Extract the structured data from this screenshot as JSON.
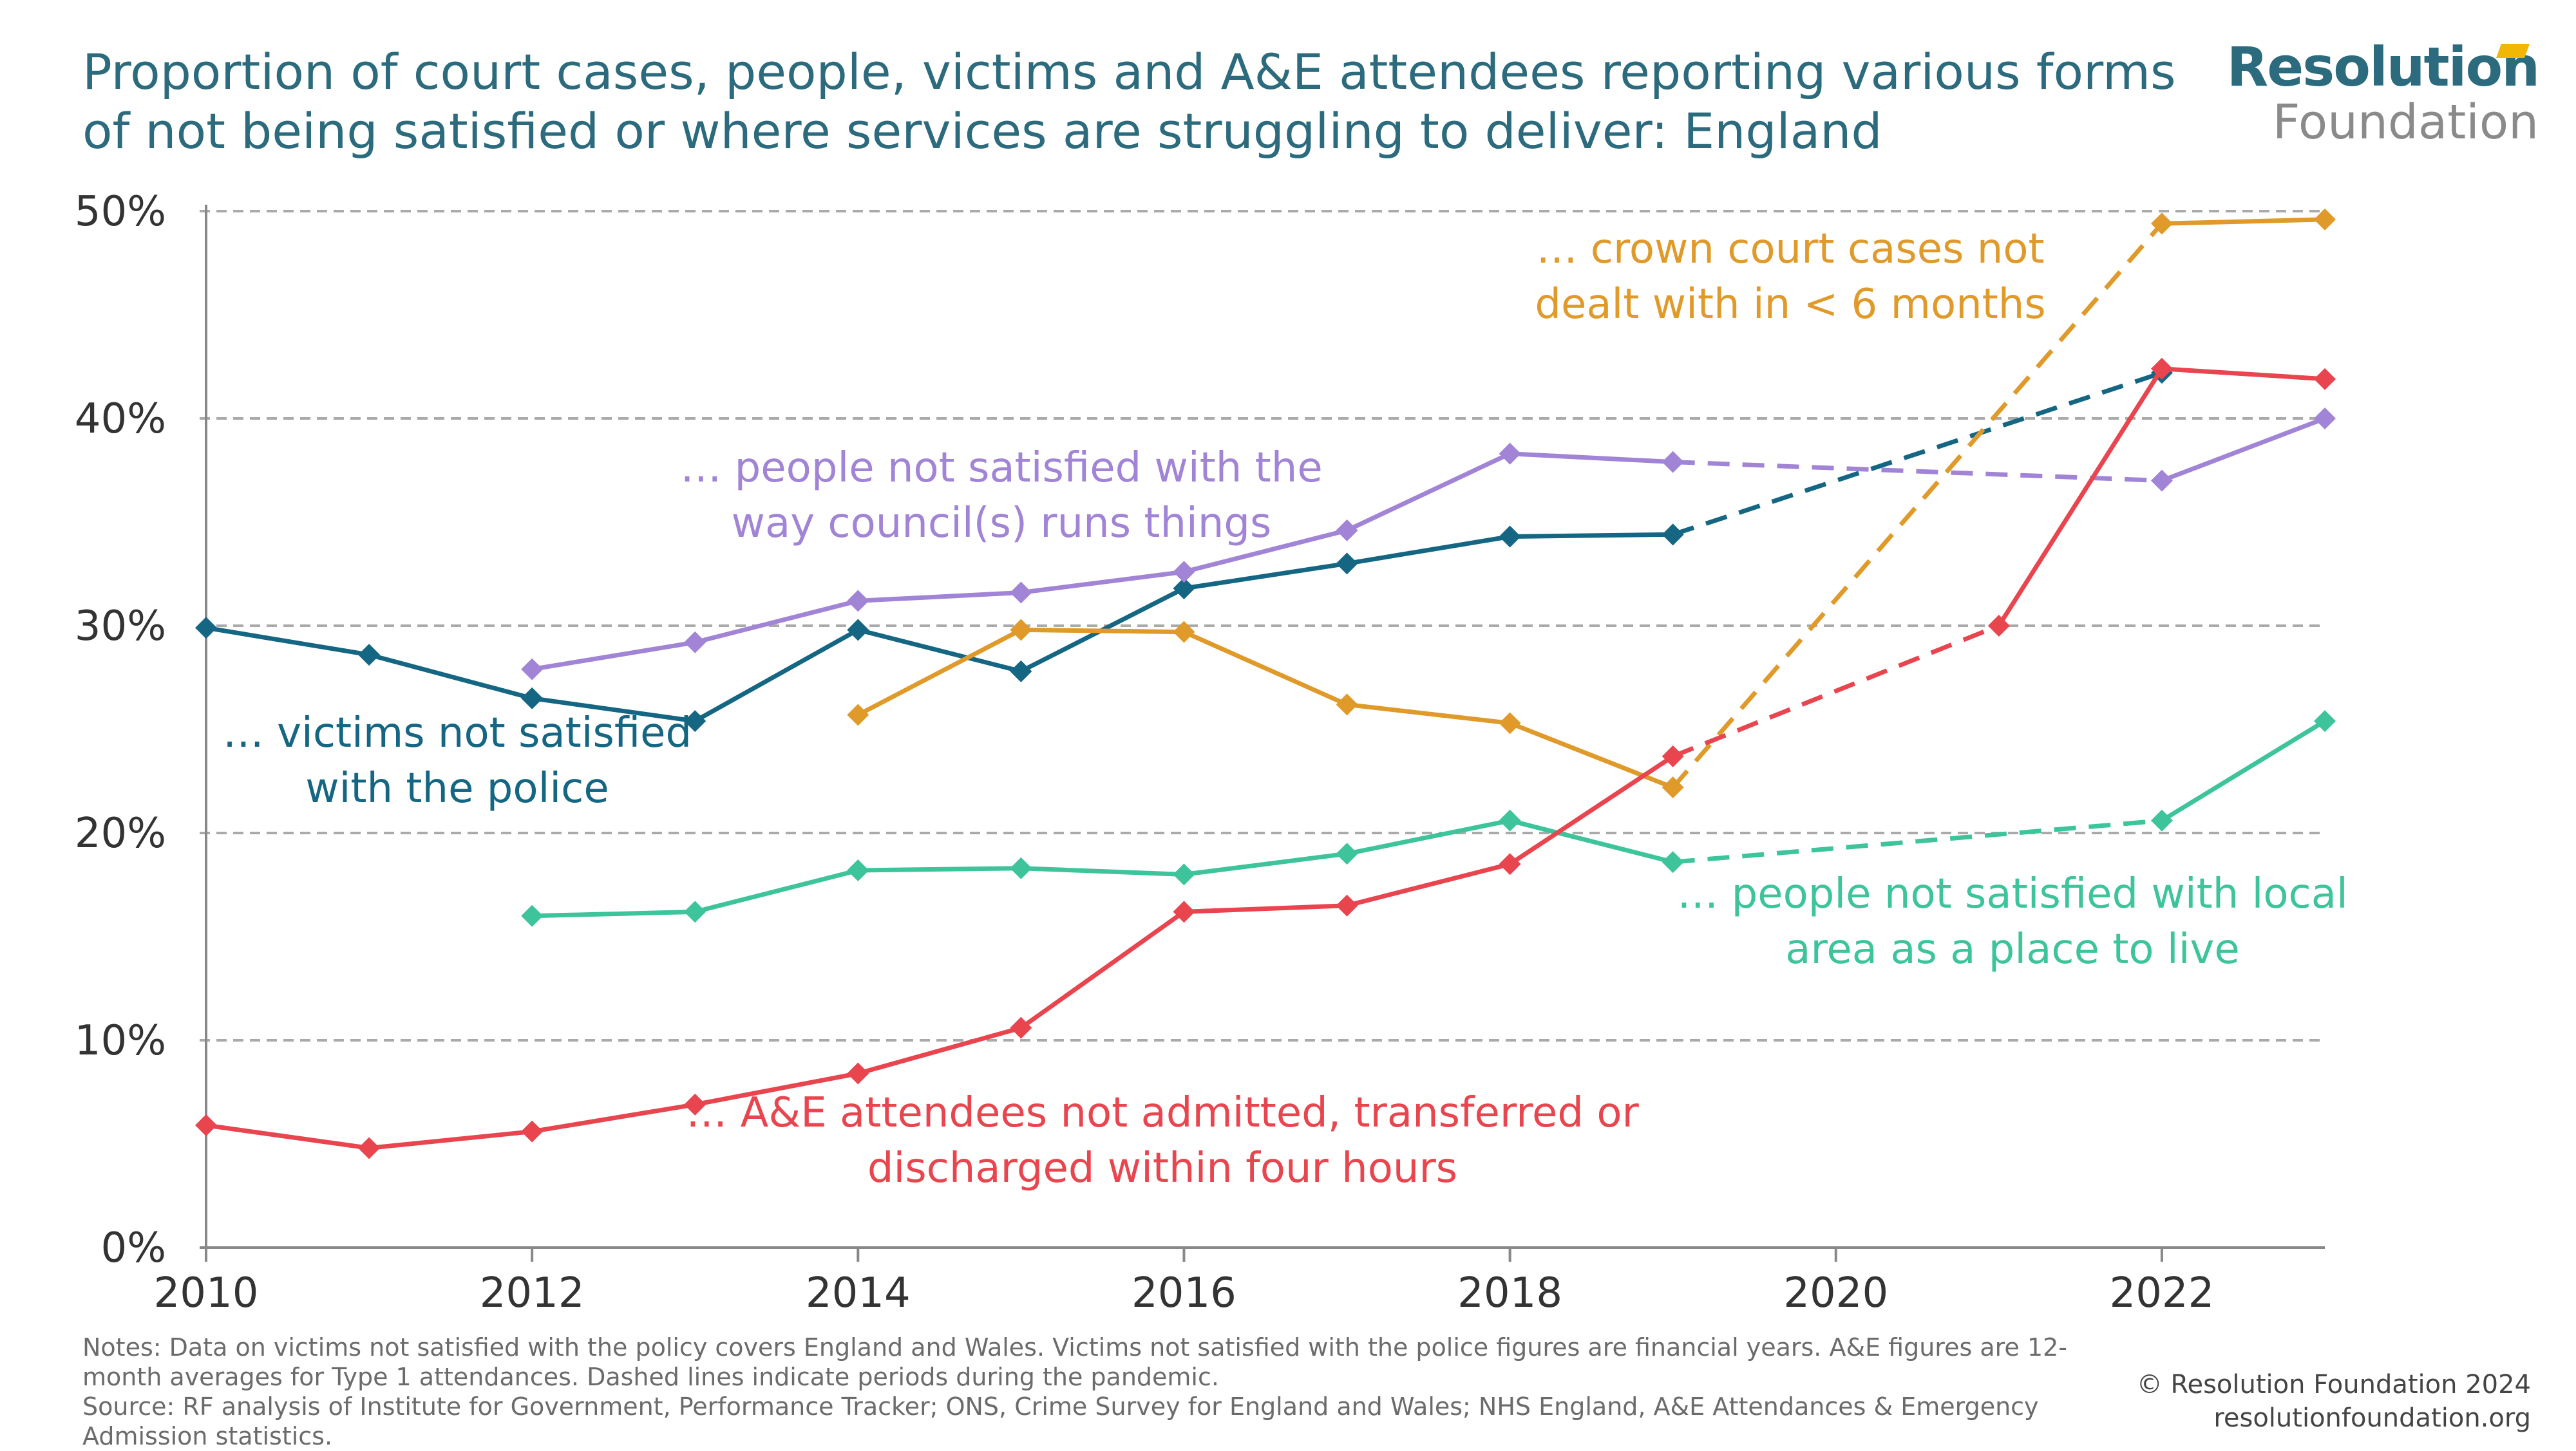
{
  "title": "Proportion of court cases, people, victims and A&E attendees reporting various forms of not being satisfied or where services are struggling to deliver: England",
  "logo": {
    "line1": "Resolution",
    "line2": "Foundation"
  },
  "notes": {
    "line1": "Notes: Data on victims not satisfied with the policy covers England and Wales. Victims not satisfied with the police figures are financial years. A&E figures are 12-month averages for Type 1 attendances. Dashed lines indicate periods during the pandemic.",
    "line2": "Source: RF analysis of Institute for Government, Performance Tracker; ONS, Crime Survey for England and Wales; NHS England, A&E Attendances & Emergency Admission statistics."
  },
  "copyright": {
    "line1": "© Resolution Foundation 2024",
    "line2": "resolutionfoundation.org"
  },
  "colors": {
    "title": "#2b6b7d",
    "grid": "#aaaaaa",
    "axis": "#888888",
    "tick": "#333333"
  },
  "chart_data": {
    "type": "line",
    "xlim": [
      2010,
      2023
    ],
    "ylim": [
      0,
      50
    ],
    "xticks": [
      2010,
      2012,
      2014,
      2016,
      2018,
      2020,
      2022
    ],
    "yticks": [
      0,
      10,
      20,
      30,
      40,
      50
    ],
    "ytick_suffix": "%",
    "grid": "horizontal dashed",
    "series": [
      {
        "id": "police",
        "label": [
          "… victims not satisfied",
          "with the police"
        ],
        "color": "#146683",
        "points": [
          [
            2010,
            29.9
          ],
          [
            2011,
            28.6
          ],
          [
            2012,
            26.5
          ],
          [
            2013,
            25.4
          ],
          [
            2014,
            29.8
          ],
          [
            2015,
            27.8
          ],
          [
            2016,
            31.8
          ],
          [
            2017,
            33.0
          ],
          [
            2018,
            34.3
          ],
          [
            2019,
            34.4
          ]
        ],
        "dashed": [
          [
            2019,
            34.4
          ],
          [
            2022,
            42.2
          ]
        ]
      },
      {
        "id": "council",
        "label": [
          "… people not satisfied with the",
          "way council(s) runs things"
        ],
        "color": "#a184d6",
        "points": [
          [
            2012,
            27.9
          ],
          [
            2013,
            29.2
          ],
          [
            2014,
            31.2
          ],
          [
            2015,
            31.6
          ],
          [
            2016,
            32.6
          ],
          [
            2017,
            34.6
          ],
          [
            2018,
            38.3
          ],
          [
            2019,
            37.9
          ]
        ],
        "dashed": [
          [
            2019,
            37.9
          ],
          [
            2022,
            37.0
          ]
        ],
        "after": [
          [
            2022,
            37.0
          ],
          [
            2023,
            40.0
          ]
        ]
      },
      {
        "id": "crown",
        "label": [
          "… crown court cases not",
          "dealt with in < 6 months"
        ],
        "color": "#e09a2a",
        "points": [
          [
            2014,
            25.7
          ],
          [
            2015,
            29.8
          ],
          [
            2016,
            29.7
          ],
          [
            2017,
            26.2
          ],
          [
            2018,
            25.3
          ],
          [
            2019,
            22.2
          ]
        ],
        "dashed": [
          [
            2019,
            22.2
          ],
          [
            2022,
            49.4
          ]
        ],
        "after": [
          [
            2022,
            49.4
          ],
          [
            2023,
            49.6
          ]
        ]
      },
      {
        "id": "local",
        "label": [
          "… people not satisfied with local",
          "area as a place to live"
        ],
        "color": "#3dc49b",
        "points": [
          [
            2012,
            16.0
          ],
          [
            2013,
            16.2
          ],
          [
            2014,
            18.2
          ],
          [
            2015,
            18.3
          ],
          [
            2016,
            18.0
          ],
          [
            2017,
            19.0
          ],
          [
            2018,
            20.6
          ],
          [
            2019,
            18.6
          ]
        ],
        "dashed": [
          [
            2019,
            18.6
          ],
          [
            2022,
            20.6
          ]
        ],
        "after": [
          [
            2022,
            20.6
          ],
          [
            2023,
            25.4
          ]
        ]
      },
      {
        "id": "ae",
        "label": [
          "… A&E attendees not admitted, transferred or",
          "discharged within four hours"
        ],
        "color": "#e8454f",
        "points": [
          [
            2010,
            5.9
          ],
          [
            2011,
            4.8
          ],
          [
            2012,
            5.6
          ],
          [
            2013,
            6.9
          ],
          [
            2014,
            8.4
          ],
          [
            2015,
            10.6
          ],
          [
            2016,
            16.2
          ],
          [
            2017,
            16.5
          ],
          [
            2018,
            18.5
          ],
          [
            2019,
            23.7
          ]
        ],
        "dashed": [
          [
            2019,
            23.7
          ],
          [
            2021,
            30.0
          ]
        ],
        "after": [
          [
            2021,
            30.0
          ],
          [
            2022,
            42.4
          ],
          [
            2023,
            41.9
          ]
        ]
      }
    ]
  }
}
